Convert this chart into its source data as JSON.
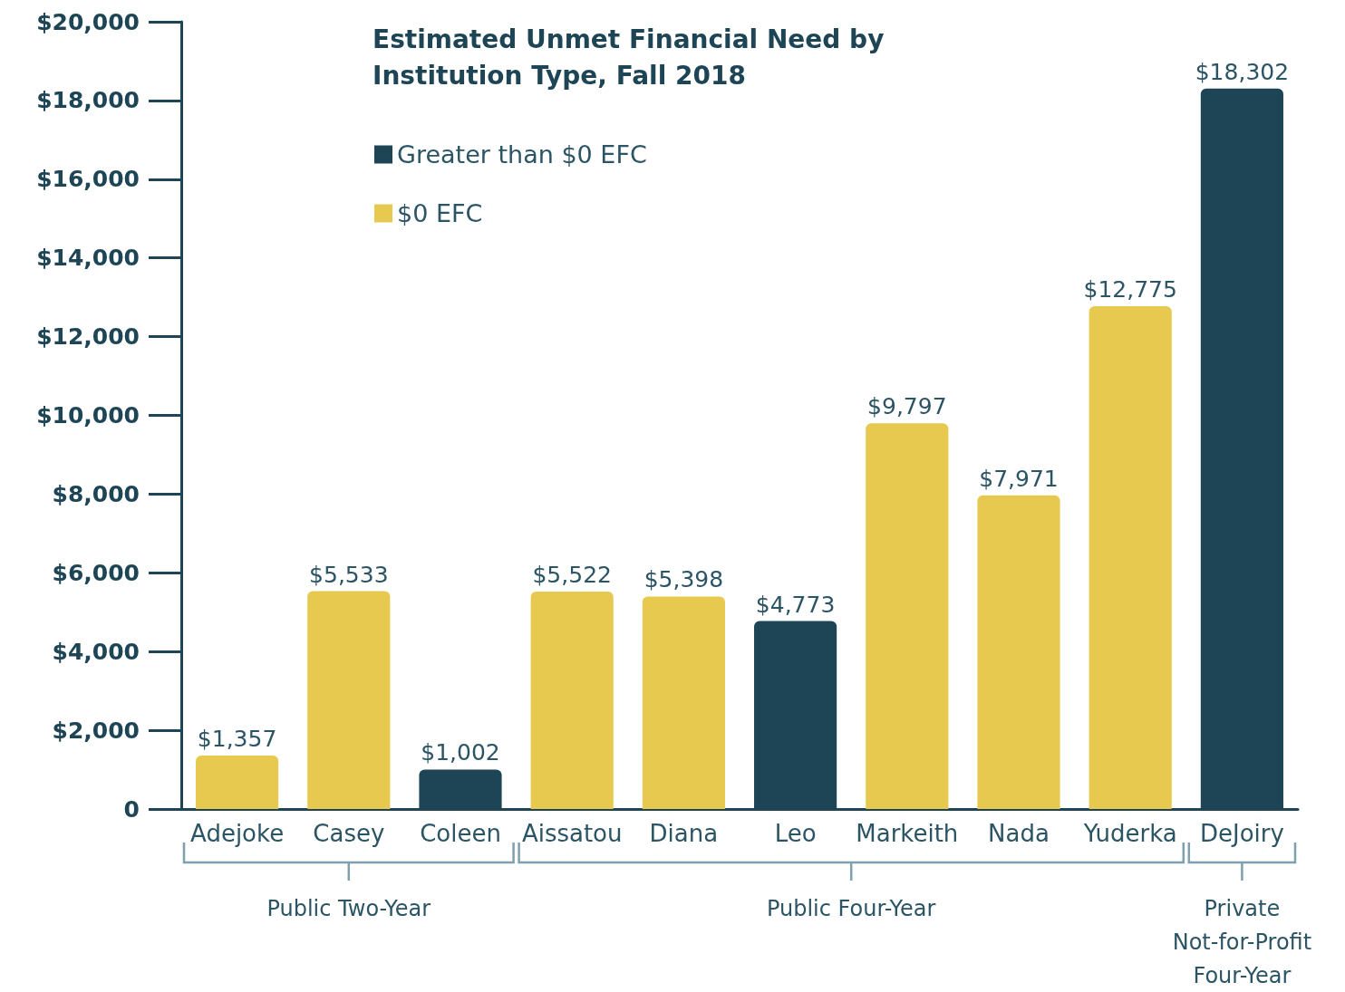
{
  "chart_data": {
    "type": "bar",
    "title": "Estimated Unmet Financial Need by Institution Type, Fall 2018",
    "categories": [
      "Adejoke",
      "Casey",
      "Coleen",
      "Aissatou",
      "Diana",
      "Leo",
      "Markeith",
      "Nada",
      "Yuderka",
      "DeJoiry"
    ],
    "series": [
      {
        "name": "Greater than $0 EFC",
        "color": "#1d4556",
        "values": [
          null,
          null,
          1002,
          null,
          null,
          4773,
          null,
          null,
          null,
          18302
        ],
        "value_labels": [
          null,
          null,
          "$1,002",
          null,
          null,
          "$4,773",
          null,
          null,
          null,
          "$18,302"
        ]
      },
      {
        "name": "$0 EFC",
        "color": "#e8c94f",
        "values": [
          1357,
          5533,
          null,
          5522,
          5398,
          null,
          9797,
          7971,
          12775,
          null
        ],
        "value_labels": [
          "$1,357",
          "$5,533",
          null,
          "$5,522",
          "$5,398",
          null,
          "$9,797",
          "$7,971",
          "$12,775",
          null
        ]
      }
    ],
    "ylim": [
      0,
      20000
    ],
    "yticks": [
      {
        "value": 0,
        "label": "0"
      },
      {
        "value": 2000,
        "label": "$2,000"
      },
      {
        "value": 4000,
        "label": "$4,000"
      },
      {
        "value": 6000,
        "label": "$6,000"
      },
      {
        "value": 8000,
        "label": "$8,000"
      },
      {
        "value": 10000,
        "label": "$10,000"
      },
      {
        "value": 12000,
        "label": "$12,000"
      },
      {
        "value": 14000,
        "label": "$14,000"
      },
      {
        "value": 16000,
        "label": "$16,000"
      },
      {
        "value": 18000,
        "label": "$18,000"
      },
      {
        "value": 20000,
        "label": "$20,000"
      }
    ],
    "annotations": [
      "Public Two-Year",
      "Public Four-Year",
      "Private Not-for-Profit Four-Year"
    ],
    "legend": "top left",
    "grid": false
  }
}
